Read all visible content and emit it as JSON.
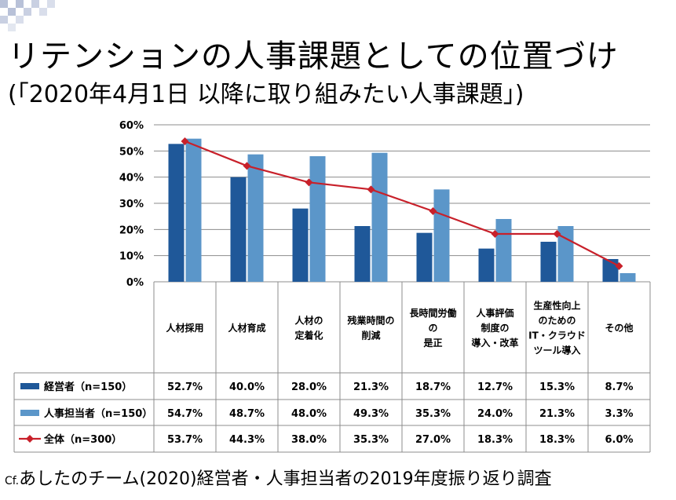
{
  "title": "リテンションの人事課題としての位置づけ",
  "subtitle": "(「2020年4月1日 以降に取り組みたい人事課題」)",
  "source_prefix": "Cf.",
  "source": "あしたのチーム(2020)経営者・人事担当者の2019年度振り返り調査",
  "chart_data": {
    "type": "bar",
    "overlay_type": "line",
    "title": "リテンションの人事課題としての位置づけ",
    "subtitle": "(「2020年4月1日 以降に取り組みたい人事課題」)",
    "ylim": [
      0,
      60
    ],
    "yticks": [
      "0%",
      "10%",
      "20%",
      "30%",
      "40%",
      "50%",
      "60%"
    ],
    "grid": true,
    "categories": [
      [
        "人材採用"
      ],
      [
        "人材育成"
      ],
      [
        "人材の",
        "定着化"
      ],
      [
        "残業時間の",
        "削減"
      ],
      [
        "長時間労働",
        "の",
        "是正"
      ],
      [
        "人事評価",
        "制度の",
        "導入・改革"
      ],
      [
        "生産性向上",
        "のための",
        "IT・クラウド",
        "ツール導入"
      ],
      [
        "その他"
      ]
    ],
    "series": [
      {
        "name": "経営者（n=150）",
        "kind": "bar",
        "color": "#1f5899",
        "values": [
          52.7,
          40.0,
          28.0,
          21.3,
          18.7,
          12.7,
          15.3,
          8.7
        ],
        "labels": [
          "52.7%",
          "40.0%",
          "28.0%",
          "21.3%",
          "18.7%",
          "12.7%",
          "15.3%",
          "8.7%"
        ]
      },
      {
        "name": "人事担当者（n=150）",
        "kind": "bar",
        "color": "#5b96c9",
        "values": [
          54.7,
          48.7,
          48.0,
          49.3,
          35.3,
          24.0,
          21.3,
          3.3
        ],
        "labels": [
          "54.7%",
          "48.7%",
          "48.0%",
          "49.3%",
          "35.3%",
          "24.0%",
          "21.3%",
          "3.3%"
        ]
      },
      {
        "name": "全体（n=300）",
        "kind": "line",
        "color": "#c8202a",
        "values": [
          53.7,
          44.3,
          38.0,
          35.3,
          27.0,
          18.3,
          18.3,
          6.0
        ],
        "labels": [
          "53.7%",
          "44.3%",
          "38.0%",
          "35.3%",
          "27.0%",
          "18.3%",
          "18.3%",
          "6.0%"
        ]
      }
    ]
  }
}
